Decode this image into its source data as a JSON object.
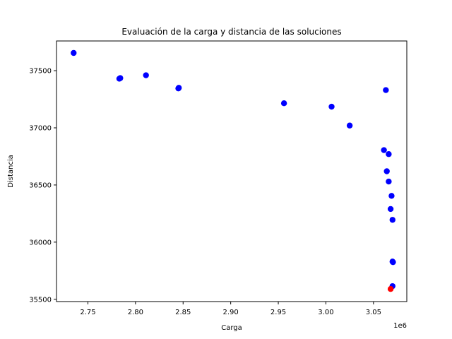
{
  "chart_data": {
    "type": "scatter",
    "title": "Evaluación de la carga y distancia de las soluciones",
    "xlabel": "Carga",
    "ylabel": "Distancia",
    "x_offset_label": "1e6",
    "x_scale": 1000000,
    "xlim": [
      2717000,
      3085000
    ],
    "ylim": [
      35480,
      37760
    ],
    "xticks": [
      2750000,
      2800000,
      2850000,
      2900000,
      2950000,
      3000000,
      3050000
    ],
    "xtick_labels": [
      "2.75",
      "2.80",
      "2.85",
      "2.90",
      "2.95",
      "3.00",
      "3.05"
    ],
    "yticks": [
      35500,
      36000,
      36500,
      37000,
      37500
    ],
    "ytick_labels": [
      "35500",
      "36000",
      "36500",
      "37000",
      "37500"
    ],
    "grid": false,
    "colors": {
      "points": "#0000ff",
      "highlight": "#ff0000"
    },
    "series": [
      {
        "color": "#0000ff",
        "points": [
          [
            2735000,
            37655
          ],
          [
            2783000,
            37430
          ],
          [
            2784000,
            37435
          ],
          [
            2811000,
            37460
          ],
          [
            2845000,
            37345
          ],
          [
            2845500,
            37350
          ],
          [
            2956000,
            37215
          ],
          [
            3006000,
            37185
          ],
          [
            3025000,
            37020
          ],
          [
            3063000,
            37330
          ],
          [
            3061000,
            36805
          ],
          [
            3066000,
            36770
          ],
          [
            3064000,
            36620
          ],
          [
            3066000,
            36530
          ],
          [
            3069000,
            36405
          ],
          [
            3068000,
            36290
          ],
          [
            3070000,
            36195
          ],
          [
            3070000,
            35830
          ],
          [
            3070500,
            35825
          ],
          [
            3070000,
            35615
          ]
        ]
      },
      {
        "color": "#ff0000",
        "points": [
          [
            3068000,
            35590
          ]
        ]
      }
    ]
  }
}
